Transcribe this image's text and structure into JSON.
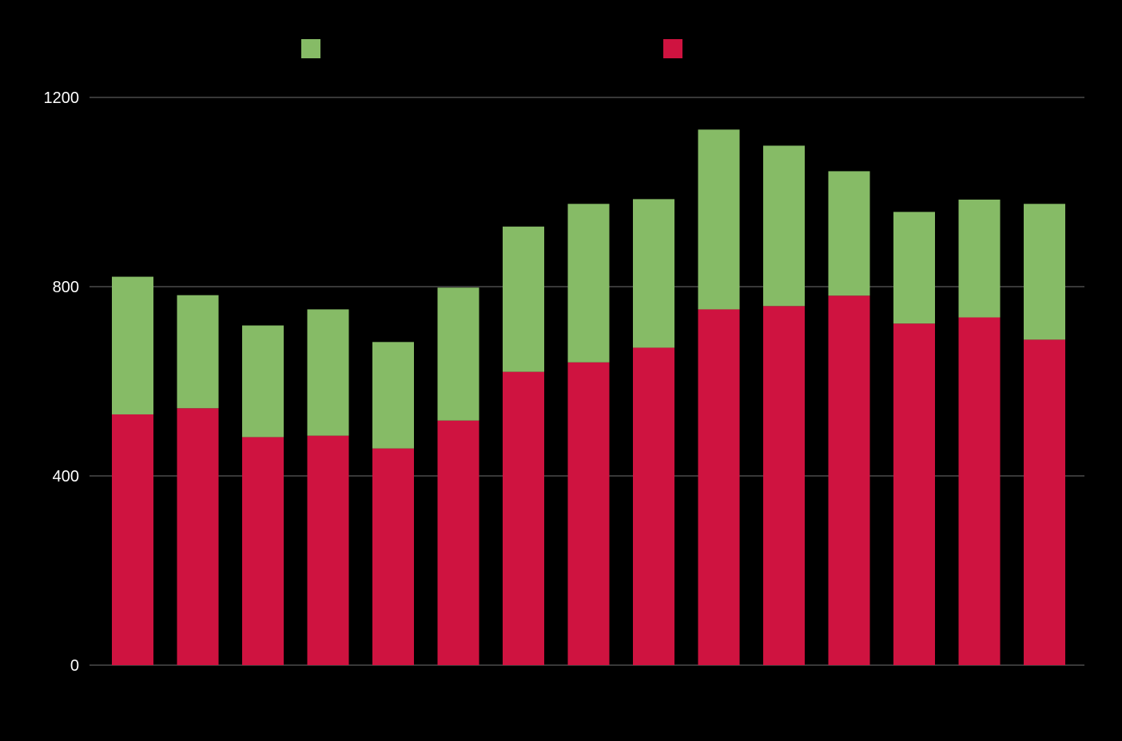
{
  "chart_data": {
    "type": "bar",
    "stacked": true,
    "title": "",
    "xlabel": "",
    "ylabel": "",
    "ylim": [
      0,
      1200
    ],
    "yticks": [
      0,
      400,
      800,
      1200
    ],
    "grid": true,
    "legend_position": "top",
    "background": "#000000",
    "series": [
      {
        "color": "#cf1340",
        "values": [
          530,
          543,
          482,
          485,
          458,
          517,
          620,
          640,
          671,
          752,
          759,
          781,
          722,
          735,
          688
        ]
      },
      {
        "color": "#86bb66",
        "values": [
          291,
          239,
          236,
          267,
          225,
          281,
          307,
          335,
          314,
          380,
          339,
          263,
          236,
          249,
          287
        ]
      }
    ]
  }
}
